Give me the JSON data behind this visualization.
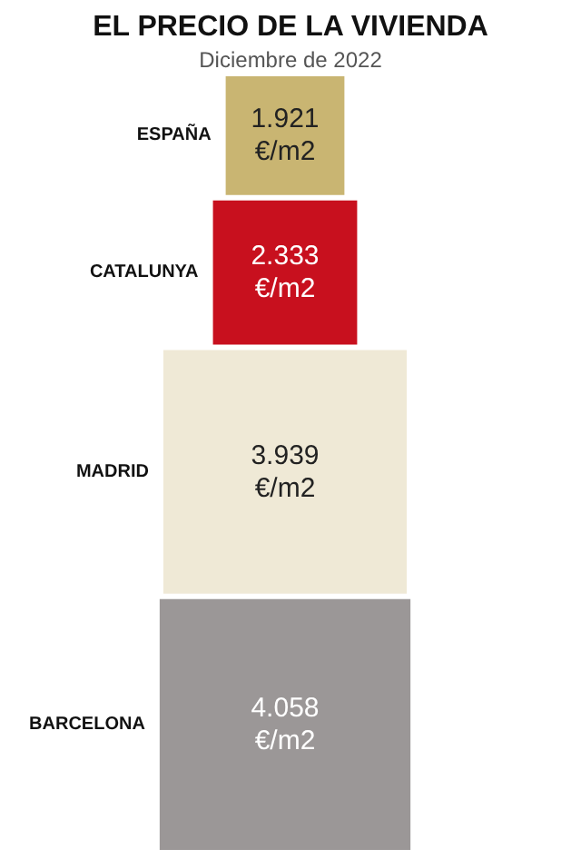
{
  "chart_data": {
    "type": "other",
    "title": "EL PRECIO DE LA VIVIENDA",
    "subtitle": "Diciembre de 2022",
    "categories": [
      "ESPAÑA",
      "CATALUNYA",
      "MADRID",
      "BARCELONA"
    ],
    "values": [
      1921,
      2333,
      3939,
      4058
    ],
    "value_labels": [
      "1.921\n€/m2",
      "2.333\n€/m2",
      "3.939\n€/m2",
      "4.058\n€/m2"
    ],
    "colors": [
      "#c9b572",
      "#c8101e",
      "#efe9d6",
      "#9b9797"
    ]
  }
}
